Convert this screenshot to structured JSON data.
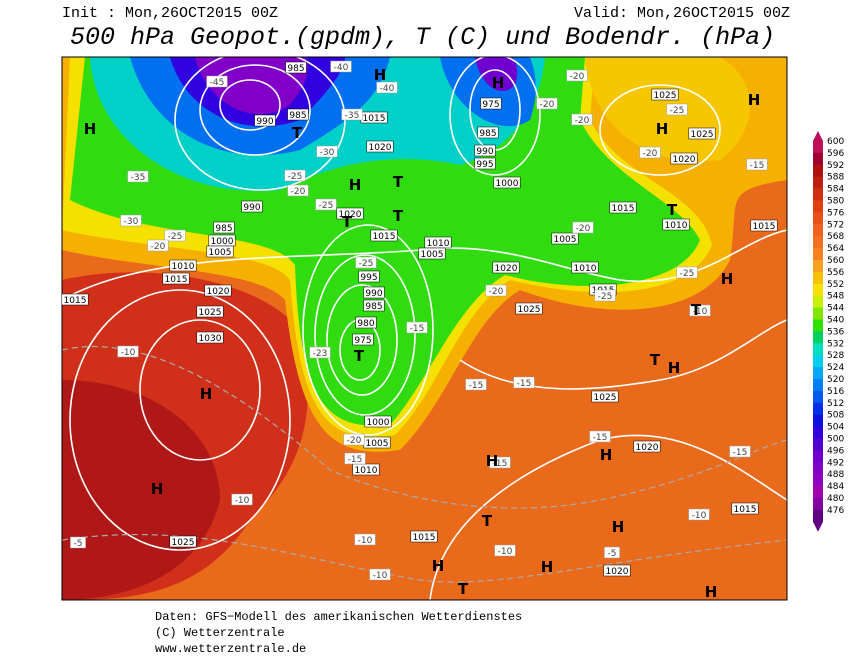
{
  "header": {
    "init": "Init : Mon,26OCT2015 00Z",
    "valid": "Valid: Mon,26OCT2015 00Z",
    "title": "500 hPa Geopot.(gpdm), T (C) und Bodendr. (hPa)"
  },
  "footer": {
    "line1": "Daten: GFS−Modell des amerikanischen Wetterdienstes",
    "line2": "(C) Wetterzentrale",
    "line3": "www.wetterzentrale.de"
  },
  "colorbar": {
    "levels": [
      600,
      596,
      592,
      588,
      584,
      580,
      576,
      572,
      568,
      564,
      560,
      556,
      552,
      548,
      544,
      540,
      536,
      532,
      528,
      524,
      520,
      516,
      512,
      508,
      504,
      500,
      496,
      492,
      488,
      484,
      480,
      476
    ],
    "colors": [
      "#c0105a",
      "#a00030",
      "#b01010",
      "#c02010",
      "#d03010",
      "#e04010",
      "#e85018",
      "#f06020",
      "#f07020",
      "#f88020",
      "#f8a020",
      "#f8c000",
      "#f8e000",
      "#c8f000",
      "#80e800",
      "#30e000",
      "#00d060",
      "#00e0c0",
      "#00d0f0",
      "#00a8f8",
      "#0080f8",
      "#0058f0",
      "#0030e8",
      "#1010e0",
      "#3000e0",
      "#5000d0",
      "#7000d0",
      "#8000c8",
      "#9000c0",
      "#a000b0",
      "#8000a0",
      "#600080"
    ]
  },
  "map_labels": {
    "pressure": [
      "985",
      "990",
      "985",
      "975",
      "985",
      "990",
      "995",
      "1000",
      "1015",
      "1020",
      "990",
      "985",
      "1000",
      "1005",
      "1020",
      "1015",
      "1010",
      "1005",
      "1010",
      "1015",
      "1020",
      "1025",
      "1030",
      "1015",
      "995",
      "990",
      "985",
      "980",
      "975",
      "1000",
      "1005",
      "1010",
      "1020",
      "1025",
      "1005",
      "1010",
      "1015",
      "1015",
      "1010",
      "1015",
      "1025",
      "1025",
      "1020",
      "1025",
      "1020",
      "1015",
      "1025",
      "1015",
      "1020"
    ],
    "temperature": [
      "-45",
      "-40",
      "-40",
      "-35",
      "-30",
      "-25",
      "-20",
      "-25",
      "-35",
      "-30",
      "-25",
      "-20",
      "-20",
      "-20",
      "-20",
      "-20",
      "-25",
      "-15",
      "-20",
      "-25",
      "-25",
      "-20",
      "-25",
      "-20",
      "-15",
      "-15",
      "-10",
      "-15",
      "-15",
      "-15",
      "-15",
      "-15",
      "-10",
      "-10",
      "-10",
      "-10",
      "-5",
      "-5",
      "-10",
      "-23",
      "-10"
    ],
    "centers": [
      "H",
      "H",
      "H",
      "T",
      "T",
      "T",
      "T",
      "H",
      "H",
      "H",
      "T",
      "H",
      "T",
      "H",
      "T",
      "H",
      "H",
      "T",
      "H",
      "H",
      "T",
      "H",
      "H",
      "H",
      "T",
      "H"
    ]
  }
}
